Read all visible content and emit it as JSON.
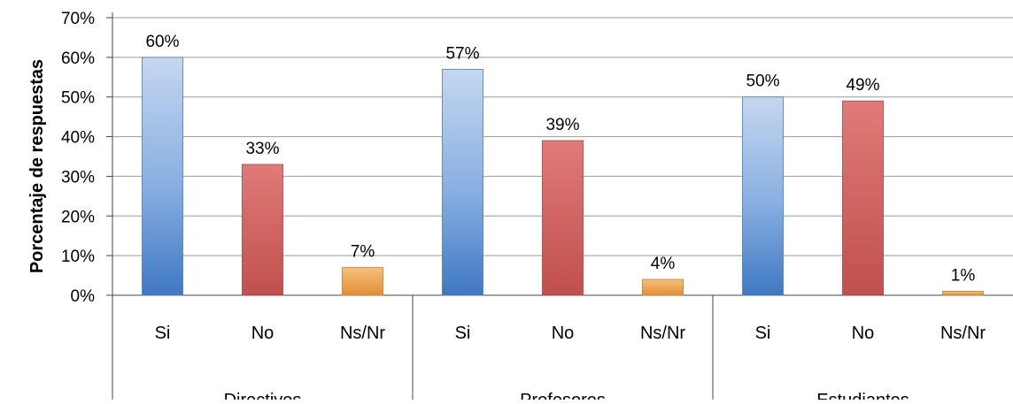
{
  "chart_data": {
    "type": "bar",
    "ylabel": "Porcentaje de respuestas",
    "ylim": [
      0,
      70
    ],
    "y_ticks": [
      "0%",
      "10%",
      "20%",
      "30%",
      "40%",
      "50%",
      "60%",
      "70%"
    ],
    "grid": true,
    "groups": [
      {
        "name": "Directivos",
        "categories": [
          "Si",
          "No",
          "Ns/Nr"
        ],
        "values": [
          60,
          33,
          7
        ],
        "labels": [
          "60%",
          "33%",
          "7%"
        ]
      },
      {
        "name": "Profesores",
        "categories": [
          "Si",
          "No",
          "Ns/Nr"
        ],
        "values": [
          57,
          39,
          4
        ],
        "labels": [
          "57%",
          "39%",
          "4%"
        ]
      },
      {
        "name": "Estudiantes",
        "categories": [
          "Si",
          "No",
          "Ns/Nr"
        ],
        "values": [
          50,
          49,
          1
        ],
        "labels": [
          "50%",
          "49%",
          "1%"
        ]
      }
    ],
    "colors": {
      "Si": "#5b8fd0",
      "No": "#c44e4d",
      "Ns/Nr": "#e89a45"
    }
  }
}
